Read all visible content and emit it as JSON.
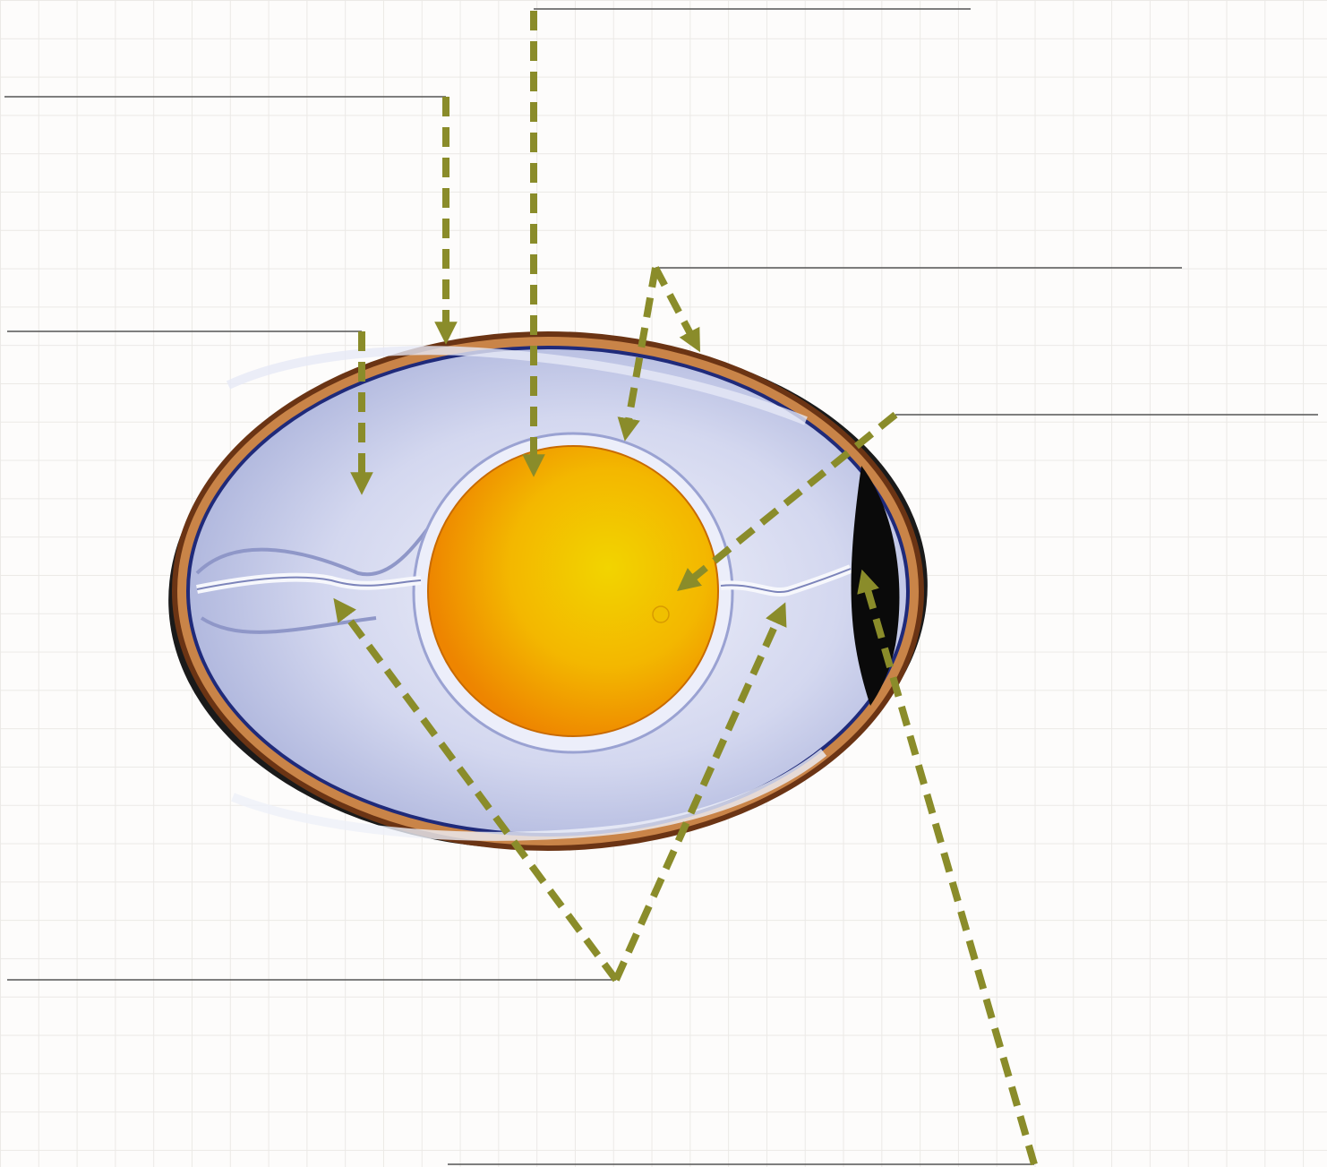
{
  "diagram": {
    "subject": "egg-cross-section",
    "labels": {
      "shell": "",
      "outer_shell_membrane": "",
      "yolk": "",
      "albumen": "",
      "vitelline_membrane": "",
      "germinal_disc": "",
      "chalazae": "",
      "air_cell": ""
    },
    "colors": {
      "arrow": "#8a8c2a",
      "leader_line": "#555555",
      "shell": "#c98448",
      "shell_edge": "#6b3414",
      "albumen": "#c7ccea",
      "yolk_center": "#f2d400",
      "yolk_edge": "#ee8a00",
      "air_cell": "#0a0a0a"
    }
  }
}
